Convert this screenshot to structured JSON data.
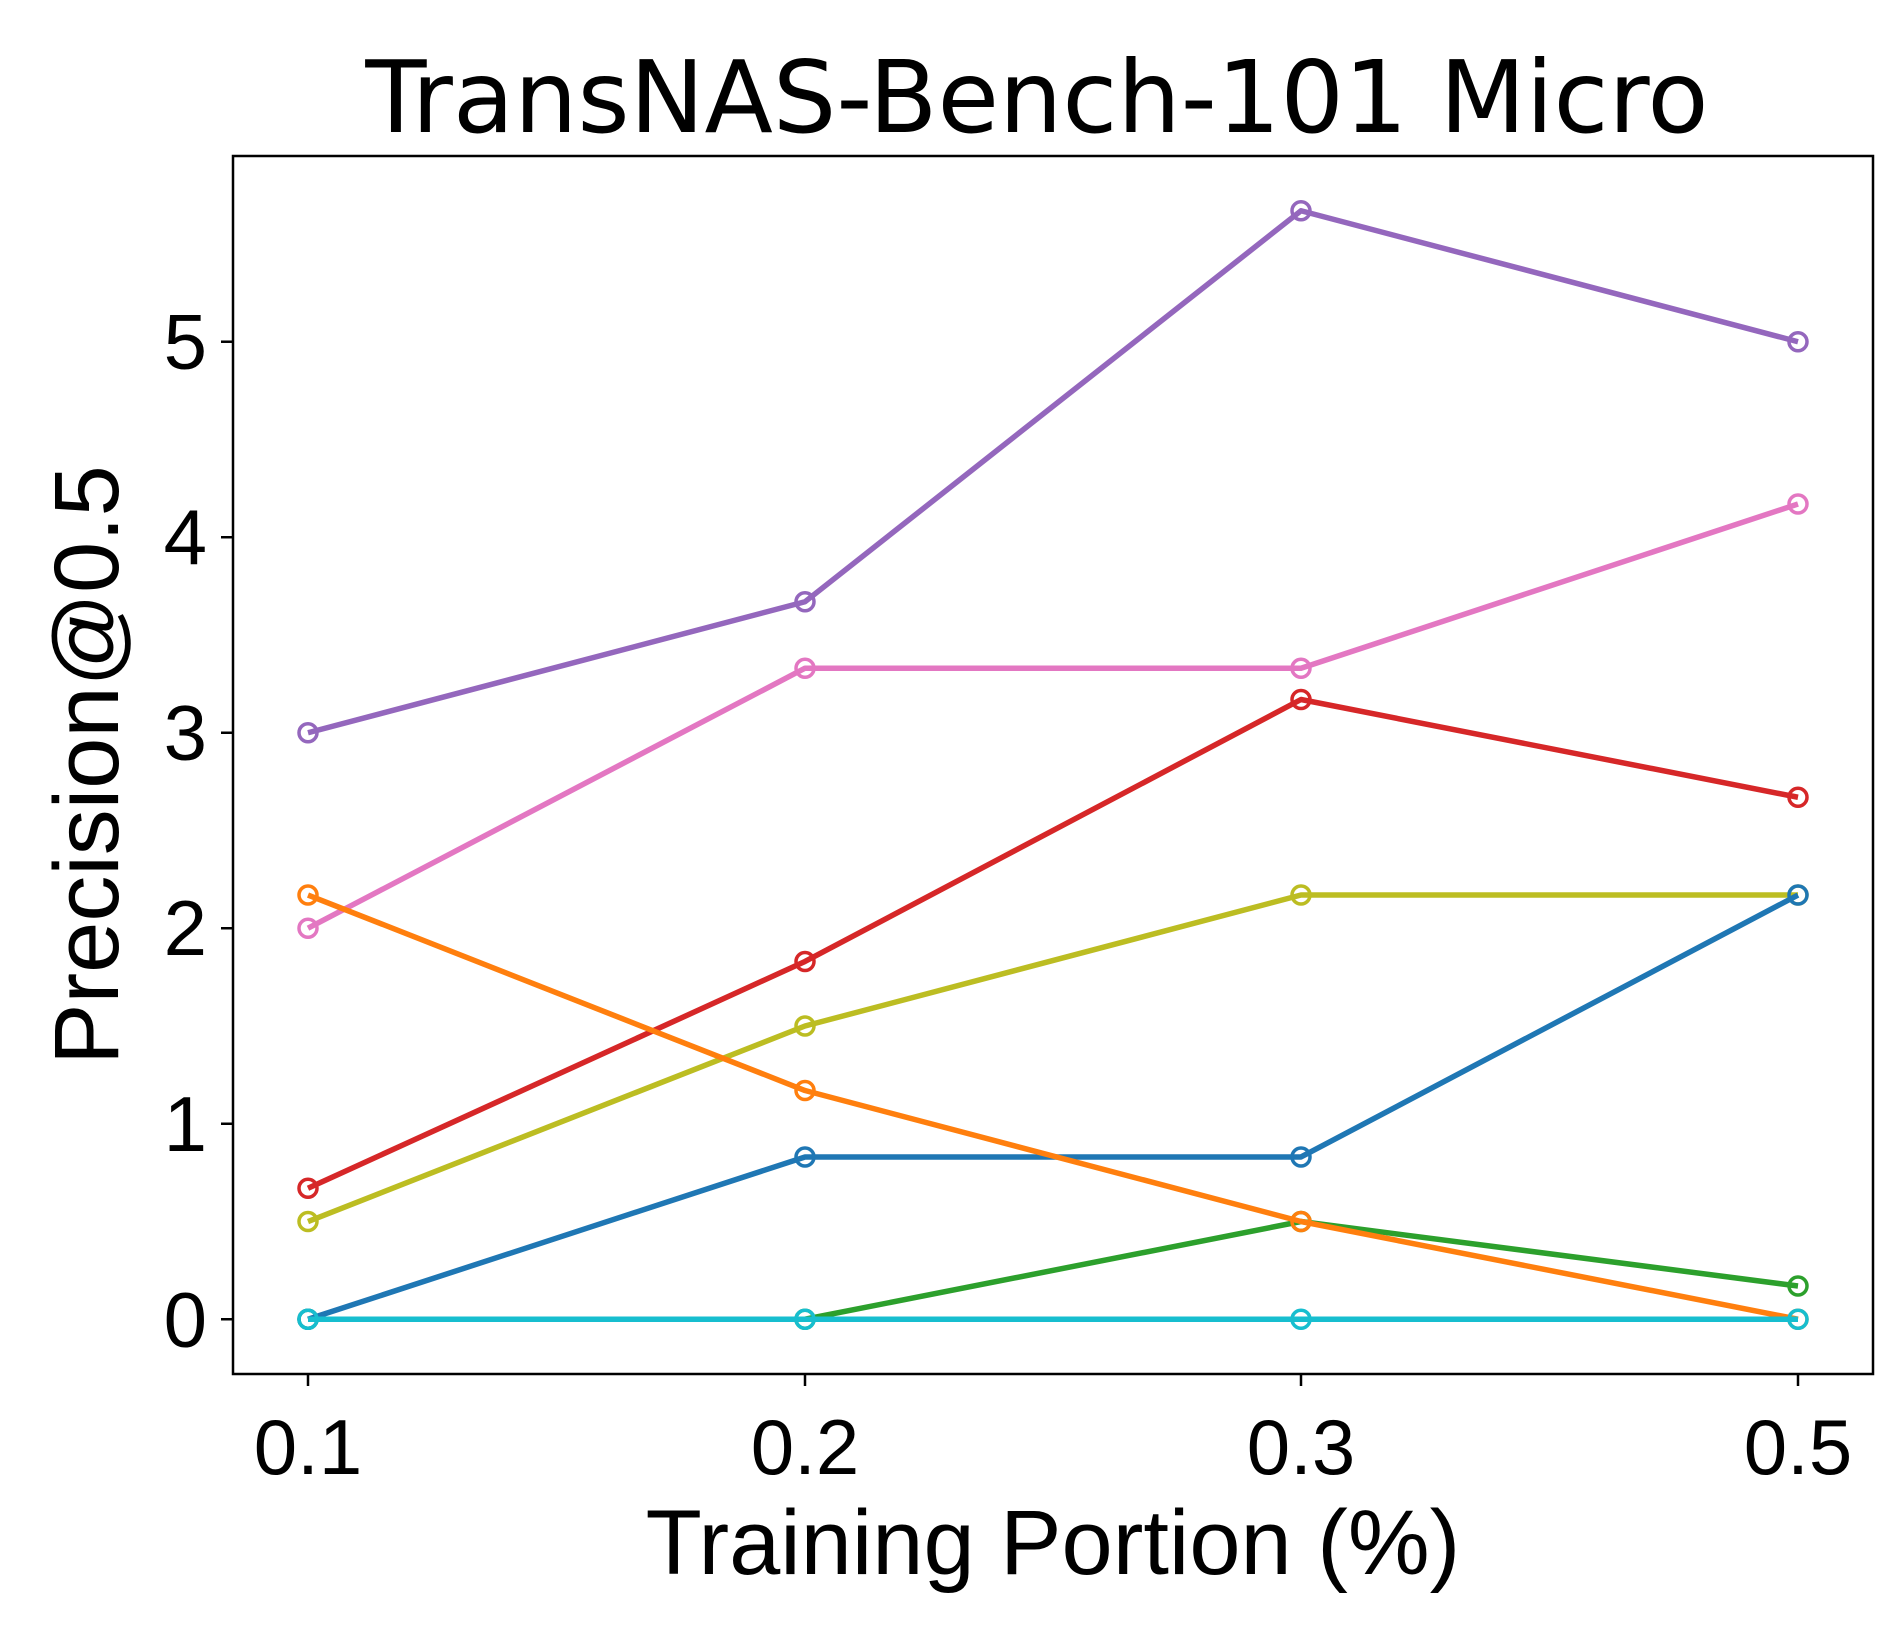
{
  "chart_data": {
    "type": "line",
    "title": "TransNAS-Bench-101 Micro",
    "xlabel": "Training Portion (%)",
    "ylabel": "Precision@0.5",
    "categories": [
      "0.1",
      "0.2",
      "0.3",
      "0.5"
    ],
    "yticks": [
      "0",
      "1",
      "2",
      "3",
      "4",
      "5"
    ],
    "ylim": [
      -0.28,
      5.95
    ],
    "grid": false,
    "legend": "none",
    "series": [
      {
        "name": "purple",
        "color": "#9467bd",
        "values": [
          3.0,
          3.67,
          5.67,
          5.0
        ]
      },
      {
        "name": "pink",
        "color": "#e377c2",
        "values": [
          2.0,
          3.33,
          3.33,
          4.17
        ]
      },
      {
        "name": "red",
        "color": "#d62728",
        "values": [
          0.67,
          1.83,
          3.17,
          2.67
        ]
      },
      {
        "name": "olive",
        "color": "#bcbd22",
        "values": [
          0.5,
          1.5,
          2.17,
          2.17
        ]
      },
      {
        "name": "green",
        "color": "#2ca02c",
        "values": [
          0.0,
          0.0,
          0.5,
          0.17
        ]
      },
      {
        "name": "blue",
        "color": "#1f77b4",
        "values": [
          0.0,
          0.83,
          0.83,
          2.17
        ]
      },
      {
        "name": "orange",
        "color": "#ff7f0e",
        "values": [
          2.17,
          1.17,
          0.5,
          0.0
        ]
      },
      {
        "name": "cyan",
        "color": "#17becf",
        "values": [
          0.0,
          0.0,
          0.0,
          0.0
        ]
      }
    ]
  }
}
